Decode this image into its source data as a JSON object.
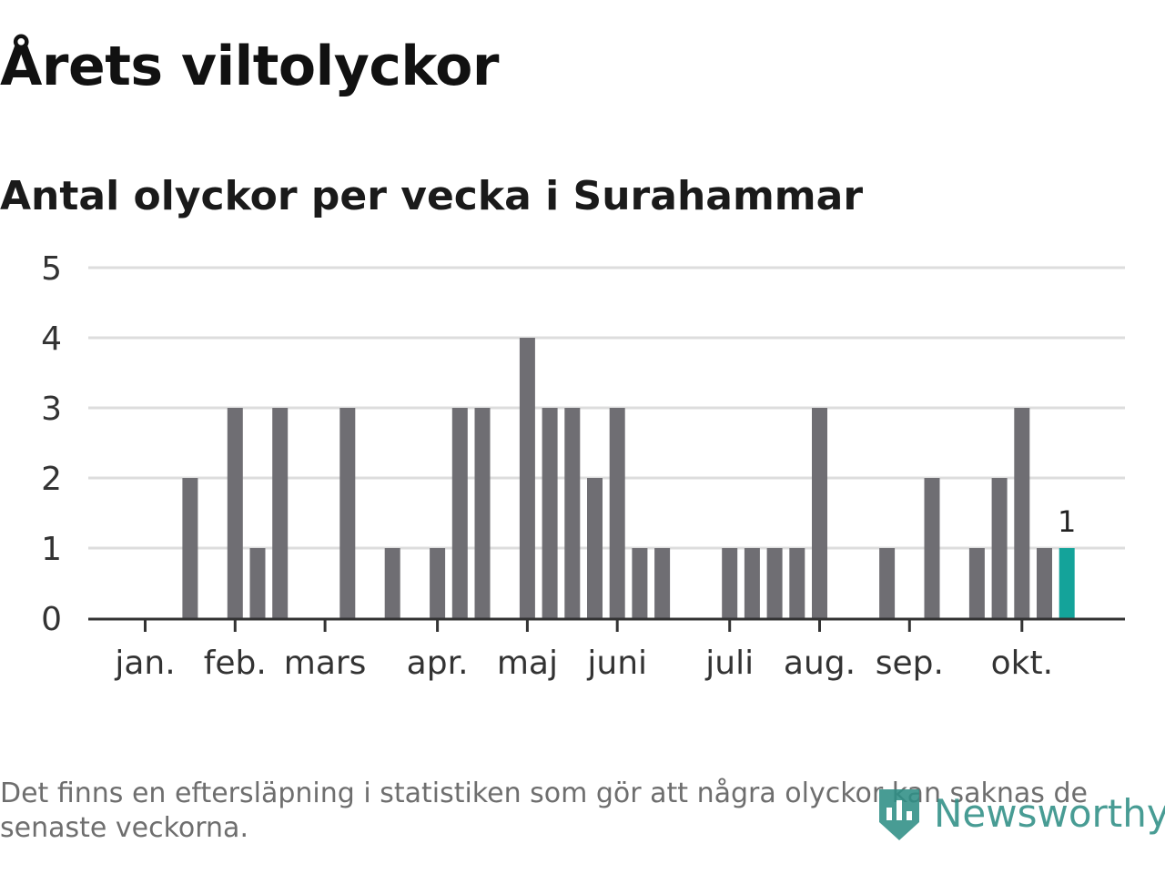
{
  "title": "Årets viltolyckor",
  "subtitle": "Antal olyckor per vecka i Surahammar",
  "footnote": "Det finns en eftersläpning i statistiken som gör att några olyckor kan saknas de senaste veckorna.",
  "logo": {
    "text": "Newsworthy",
    "icon": "newsworthy-chart-icon"
  },
  "colors": {
    "bar": "#6f6e73",
    "highlight": "#14a39a",
    "grid": "#dddddd",
    "axis": "#333333",
    "text": "#333333"
  },
  "chart_data": {
    "type": "bar",
    "x": [
      1,
      2,
      3,
      4,
      5,
      6,
      7,
      8,
      9,
      10,
      11,
      12,
      13,
      14,
      15,
      16,
      17,
      18,
      19,
      20,
      21,
      22,
      23,
      24,
      25,
      26,
      27,
      28,
      29,
      30,
      31,
      32,
      33,
      34,
      35,
      36,
      37,
      38,
      39,
      40,
      41,
      42,
      43
    ],
    "values": [
      0,
      0,
      2,
      0,
      3,
      1,
      3,
      0,
      0,
      3,
      0,
      1,
      0,
      1,
      3,
      3,
      0,
      4,
      3,
      3,
      2,
      3,
      1,
      1,
      0,
      0,
      1,
      1,
      1,
      1,
      3,
      0,
      0,
      1,
      0,
      2,
      0,
      1,
      2,
      3,
      1,
      1,
      0
    ],
    "highlight_index": 41,
    "highlight_label": "1",
    "yticks": [
      0,
      1,
      2,
      3,
      4,
      5
    ],
    "ylim": [
      0,
      5
    ],
    "months": [
      {
        "label": "jan.",
        "week": 1.0
      },
      {
        "label": "feb.",
        "week": 5.0
      },
      {
        "label": "mars",
        "week": 9.0
      },
      {
        "label": "apr.",
        "week": 14.0
      },
      {
        "label": "maj",
        "week": 18.0
      },
      {
        "label": "juni",
        "week": 22.0
      },
      {
        "label": "juli",
        "week": 27.0
      },
      {
        "label": "aug.",
        "week": 31.0
      },
      {
        "label": "sep.",
        "week": 35.0
      },
      {
        "label": "okt.",
        "week": 40.0
      }
    ],
    "grid": true,
    "xlabel": "",
    "ylabel": ""
  }
}
